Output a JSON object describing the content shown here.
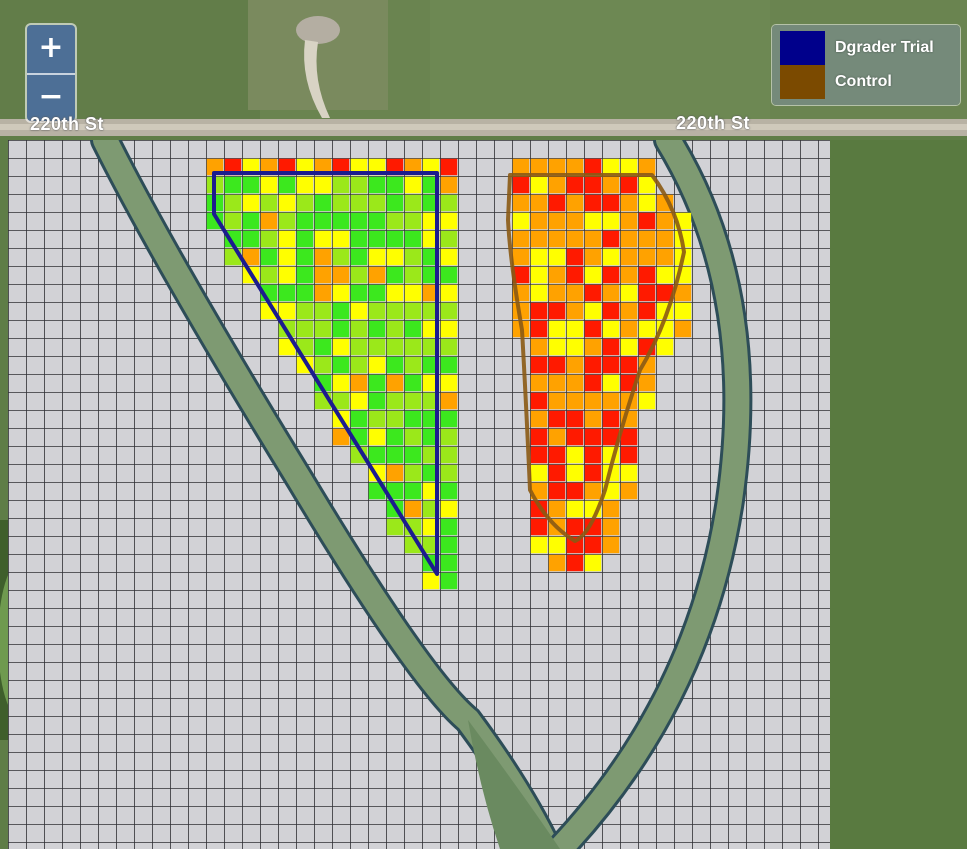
{
  "map": {
    "basemap": "satellite-imagery",
    "overlay": "grid-cells-yield-heatmap",
    "palette": {
      "grid_fill": "#d2d2d6",
      "grid_line": "#2f2f34",
      "green": "#3ce81e",
      "lime": "#9be81a",
      "yellow": "#ffff00",
      "orange": "#ffa200",
      "red": "#ff1a00",
      "road": "#a8a090",
      "waterway": "#7e9a72",
      "field": "#5e7a45"
    }
  },
  "zoom_controls": {
    "zoom_in_label": "+",
    "zoom_out_label": "−"
  },
  "legend": {
    "items": [
      {
        "label": "Dgrader Trial",
        "color": "#00008b"
      },
      {
        "label": "Control",
        "color": "#7b4a00"
      }
    ]
  },
  "road_labels": {
    "left": "220th St",
    "right": "220th St"
  },
  "polygons": {
    "trial_outline_color": "#1c1c8e",
    "control_outline_color": "#8b5a14"
  }
}
